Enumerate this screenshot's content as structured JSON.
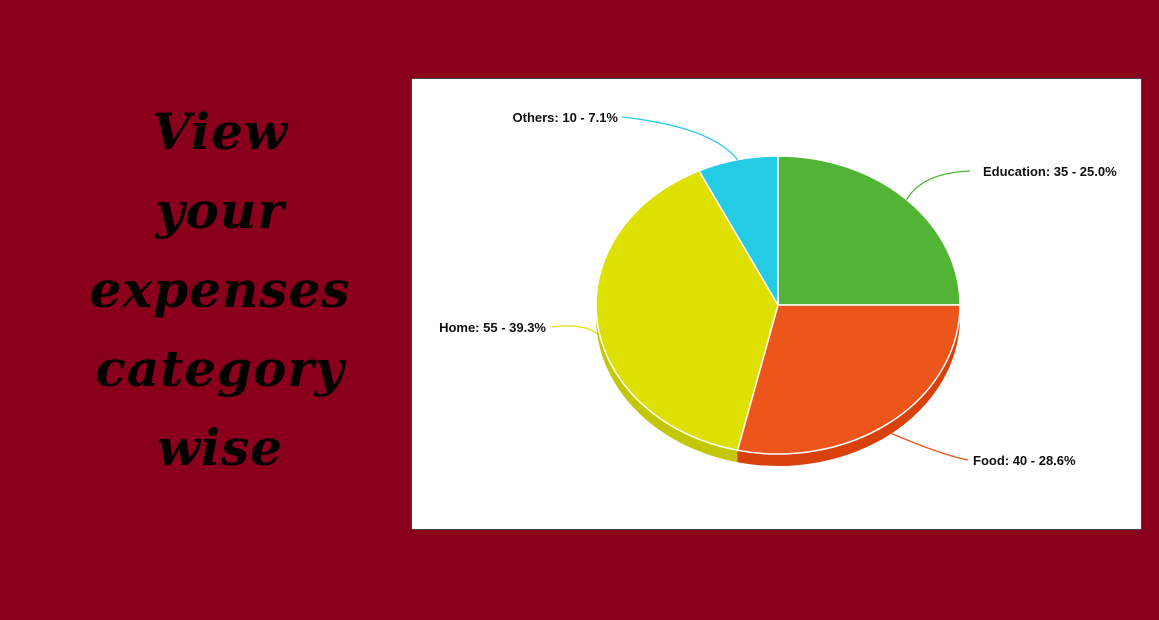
{
  "headline": {
    "lines": [
      "View",
      "your",
      "expenses",
      "category",
      "wise"
    ]
  },
  "chart_data": {
    "type": "pie",
    "title": "",
    "style": "3d-tilted",
    "legend": "none",
    "slices": [
      {
        "name": "Education",
        "value": 35,
        "percent": 25.0,
        "color": "#52b435",
        "side": "#3f8f27",
        "label": "Education: 35 - 25.0%"
      },
      {
        "name": "Food",
        "value": 40,
        "percent": 28.6,
        "color": "#ec561b",
        "side": "#d8410b",
        "label": "Food: 40 - 28.6%"
      },
      {
        "name": "Home",
        "value": 55,
        "percent": 39.3,
        "color": "#dde000",
        "side": "#c4c705",
        "label": "Home: 55 - 39.3%"
      },
      {
        "name": "Others",
        "value": 10,
        "percent": 7.1,
        "color": "#24cbe5",
        "side": "#1aa9c0",
        "label": "Others: 10 - 7.1%"
      }
    ]
  }
}
